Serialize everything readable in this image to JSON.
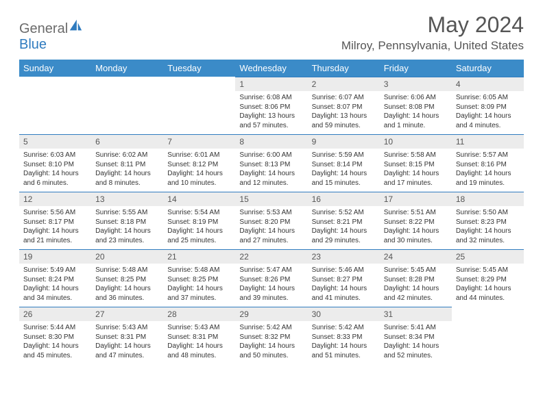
{
  "logo": {
    "text1": "General",
    "text2": "Blue",
    "icon_color": "#2f7bbf"
  },
  "title": "May 2024",
  "location": "Milroy, Pennsylvania, United States",
  "colors": {
    "header_bg": "#3b8bc8",
    "header_text": "#ffffff",
    "daynum_bg": "#ececec",
    "border_accent": "#2f7bbf",
    "body_text": "#333333",
    "title_text": "#555555"
  },
  "day_headers": [
    "Sunday",
    "Monday",
    "Tuesday",
    "Wednesday",
    "Thursday",
    "Friday",
    "Saturday"
  ],
  "weeks": [
    [
      {
        "n": "",
        "sr": "",
        "ss": "",
        "dl": ""
      },
      {
        "n": "",
        "sr": "",
        "ss": "",
        "dl": ""
      },
      {
        "n": "",
        "sr": "",
        "ss": "",
        "dl": ""
      },
      {
        "n": "1",
        "sr": "Sunrise: 6:08 AM",
        "ss": "Sunset: 8:06 PM",
        "dl": "Daylight: 13 hours and 57 minutes."
      },
      {
        "n": "2",
        "sr": "Sunrise: 6:07 AM",
        "ss": "Sunset: 8:07 PM",
        "dl": "Daylight: 13 hours and 59 minutes."
      },
      {
        "n": "3",
        "sr": "Sunrise: 6:06 AM",
        "ss": "Sunset: 8:08 PM",
        "dl": "Daylight: 14 hours and 1 minute."
      },
      {
        "n": "4",
        "sr": "Sunrise: 6:05 AM",
        "ss": "Sunset: 8:09 PM",
        "dl": "Daylight: 14 hours and 4 minutes."
      }
    ],
    [
      {
        "n": "5",
        "sr": "Sunrise: 6:03 AM",
        "ss": "Sunset: 8:10 PM",
        "dl": "Daylight: 14 hours and 6 minutes."
      },
      {
        "n": "6",
        "sr": "Sunrise: 6:02 AM",
        "ss": "Sunset: 8:11 PM",
        "dl": "Daylight: 14 hours and 8 minutes."
      },
      {
        "n": "7",
        "sr": "Sunrise: 6:01 AM",
        "ss": "Sunset: 8:12 PM",
        "dl": "Daylight: 14 hours and 10 minutes."
      },
      {
        "n": "8",
        "sr": "Sunrise: 6:00 AM",
        "ss": "Sunset: 8:13 PM",
        "dl": "Daylight: 14 hours and 12 minutes."
      },
      {
        "n": "9",
        "sr": "Sunrise: 5:59 AM",
        "ss": "Sunset: 8:14 PM",
        "dl": "Daylight: 14 hours and 15 minutes."
      },
      {
        "n": "10",
        "sr": "Sunrise: 5:58 AM",
        "ss": "Sunset: 8:15 PM",
        "dl": "Daylight: 14 hours and 17 minutes."
      },
      {
        "n": "11",
        "sr": "Sunrise: 5:57 AM",
        "ss": "Sunset: 8:16 PM",
        "dl": "Daylight: 14 hours and 19 minutes."
      }
    ],
    [
      {
        "n": "12",
        "sr": "Sunrise: 5:56 AM",
        "ss": "Sunset: 8:17 PM",
        "dl": "Daylight: 14 hours and 21 minutes."
      },
      {
        "n": "13",
        "sr": "Sunrise: 5:55 AM",
        "ss": "Sunset: 8:18 PM",
        "dl": "Daylight: 14 hours and 23 minutes."
      },
      {
        "n": "14",
        "sr": "Sunrise: 5:54 AM",
        "ss": "Sunset: 8:19 PM",
        "dl": "Daylight: 14 hours and 25 minutes."
      },
      {
        "n": "15",
        "sr": "Sunrise: 5:53 AM",
        "ss": "Sunset: 8:20 PM",
        "dl": "Daylight: 14 hours and 27 minutes."
      },
      {
        "n": "16",
        "sr": "Sunrise: 5:52 AM",
        "ss": "Sunset: 8:21 PM",
        "dl": "Daylight: 14 hours and 29 minutes."
      },
      {
        "n": "17",
        "sr": "Sunrise: 5:51 AM",
        "ss": "Sunset: 8:22 PM",
        "dl": "Daylight: 14 hours and 30 minutes."
      },
      {
        "n": "18",
        "sr": "Sunrise: 5:50 AM",
        "ss": "Sunset: 8:23 PM",
        "dl": "Daylight: 14 hours and 32 minutes."
      }
    ],
    [
      {
        "n": "19",
        "sr": "Sunrise: 5:49 AM",
        "ss": "Sunset: 8:24 PM",
        "dl": "Daylight: 14 hours and 34 minutes."
      },
      {
        "n": "20",
        "sr": "Sunrise: 5:48 AM",
        "ss": "Sunset: 8:25 PM",
        "dl": "Daylight: 14 hours and 36 minutes."
      },
      {
        "n": "21",
        "sr": "Sunrise: 5:48 AM",
        "ss": "Sunset: 8:25 PM",
        "dl": "Daylight: 14 hours and 37 minutes."
      },
      {
        "n": "22",
        "sr": "Sunrise: 5:47 AM",
        "ss": "Sunset: 8:26 PM",
        "dl": "Daylight: 14 hours and 39 minutes."
      },
      {
        "n": "23",
        "sr": "Sunrise: 5:46 AM",
        "ss": "Sunset: 8:27 PM",
        "dl": "Daylight: 14 hours and 41 minutes."
      },
      {
        "n": "24",
        "sr": "Sunrise: 5:45 AM",
        "ss": "Sunset: 8:28 PM",
        "dl": "Daylight: 14 hours and 42 minutes."
      },
      {
        "n": "25",
        "sr": "Sunrise: 5:45 AM",
        "ss": "Sunset: 8:29 PM",
        "dl": "Daylight: 14 hours and 44 minutes."
      }
    ],
    [
      {
        "n": "26",
        "sr": "Sunrise: 5:44 AM",
        "ss": "Sunset: 8:30 PM",
        "dl": "Daylight: 14 hours and 45 minutes."
      },
      {
        "n": "27",
        "sr": "Sunrise: 5:43 AM",
        "ss": "Sunset: 8:31 PM",
        "dl": "Daylight: 14 hours and 47 minutes."
      },
      {
        "n": "28",
        "sr": "Sunrise: 5:43 AM",
        "ss": "Sunset: 8:31 PM",
        "dl": "Daylight: 14 hours and 48 minutes."
      },
      {
        "n": "29",
        "sr": "Sunrise: 5:42 AM",
        "ss": "Sunset: 8:32 PM",
        "dl": "Daylight: 14 hours and 50 minutes."
      },
      {
        "n": "30",
        "sr": "Sunrise: 5:42 AM",
        "ss": "Sunset: 8:33 PM",
        "dl": "Daylight: 14 hours and 51 minutes."
      },
      {
        "n": "31",
        "sr": "Sunrise: 5:41 AM",
        "ss": "Sunset: 8:34 PM",
        "dl": "Daylight: 14 hours and 52 minutes."
      },
      {
        "n": "",
        "sr": "",
        "ss": "",
        "dl": ""
      }
    ]
  ]
}
